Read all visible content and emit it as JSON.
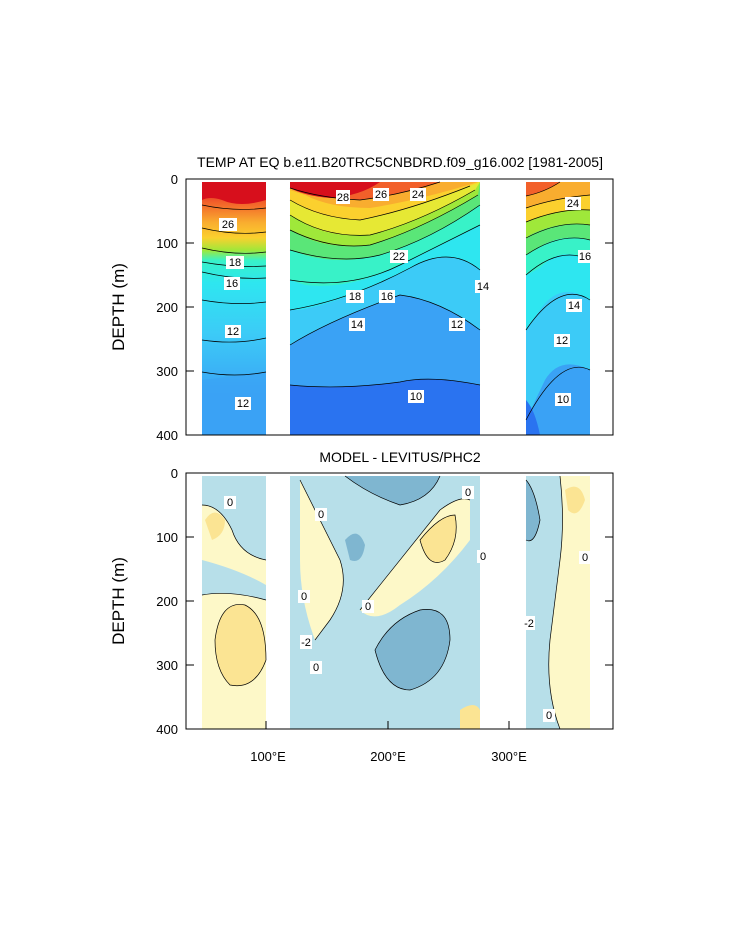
{
  "chart_data": [
    {
      "type": "contour",
      "title": "TEMP AT EQ b.e11.B20TRC5CNBDRD.f09_g16.002 [1981-2005]",
      "ylabel": "DEPTH (m)",
      "xlabel": "",
      "ylim": [
        400,
        0
      ],
      "yticks": [
        "0",
        "100",
        "200",
        "300",
        "400"
      ],
      "xticks": [],
      "x_range_degE": [
        30,
        380
      ],
      "land_gaps_degE": [
        [
          98,
          115
        ],
        [
          122,
          130
        ],
        [
          278,
          312
        ]
      ],
      "colors": [
        "#1d3fd6",
        "#2a73f0",
        "#3aa2f5",
        "#3ccbf7",
        "#2ee6f0",
        "#38f2c8",
        "#5ae678",
        "#9fe83a",
        "#e6e834",
        "#fbd02e",
        "#f9ad2f",
        "#f78a2d",
        "#f2602a",
        "#e03224",
        "#d70f1c"
      ],
      "contour_labels": [
        "28",
        "26",
        "24",
        "26",
        "18",
        "16",
        "22",
        "18",
        "16",
        "14",
        "14",
        "12",
        "12",
        "12",
        "10",
        "24",
        "16",
        "14",
        "12",
        "10"
      ]
    },
    {
      "type": "contour",
      "title": "MODEL - LEVITUS/PHC2",
      "ylabel": "DEPTH (m)",
      "xlabel": "",
      "ylim": [
        400,
        0
      ],
      "yticks": [
        "0",
        "100",
        "200",
        "300",
        "400"
      ],
      "xticks": [
        "100°E",
        "200°E",
        "300°E"
      ],
      "x_range_degE": [
        30,
        380
      ],
      "land_gaps_degE": [
        [
          98,
          115
        ],
        [
          122,
          130
        ],
        [
          278,
          312
        ]
      ],
      "colors": {
        "negative_light": "#b7dfe9",
        "negative_dark": "#7fb6d0",
        "positive_light": "#fdf8c8",
        "positive_dark": "#fbe493"
      },
      "contour_labels": [
        "0",
        "0",
        "0",
        "0",
        "0",
        "0",
        "-2",
        "0",
        "-2",
        "0",
        "0"
      ]
    }
  ]
}
